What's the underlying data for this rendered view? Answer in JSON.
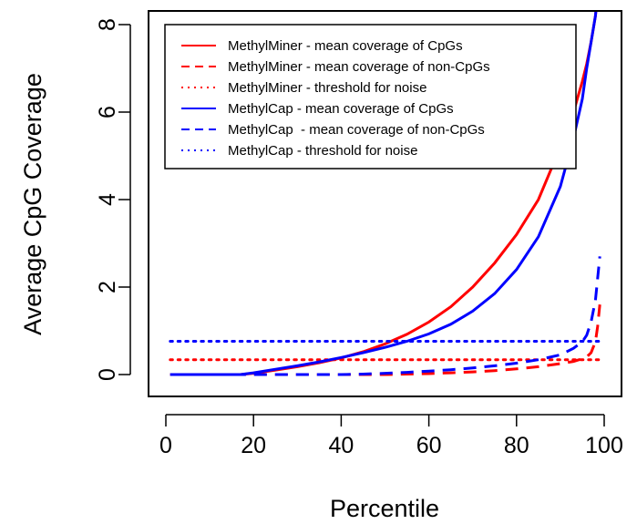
{
  "chart_data": {
    "type": "line",
    "xlabel": "Percentile",
    "ylabel": "Average CpG Coverage",
    "xlim": [
      0,
      100
    ],
    "ylim": [
      0,
      8
    ],
    "x_ticks": [
      0,
      20,
      40,
      60,
      80,
      100
    ],
    "y_ticks": [
      0,
      2,
      4,
      6,
      8
    ],
    "grid": false,
    "legend_position": "top",
    "series": [
      {
        "name": "MethylMiner - mean coverage of CpGs",
        "color": "#ff0000",
        "dash": "solid",
        "x": [
          1,
          17,
          20,
          25,
          30,
          35,
          40,
          45,
          50,
          55,
          60,
          65,
          70,
          75,
          80,
          85,
          90,
          93,
          95,
          96,
          97,
          98,
          98.5
        ],
        "y": [
          0,
          0,
          0.03,
          0.1,
          0.18,
          0.27,
          0.38,
          0.52,
          0.7,
          0.92,
          1.2,
          1.55,
          2.0,
          2.55,
          3.2,
          4.0,
          5.2,
          6.0,
          6.7,
          7.1,
          7.6,
          8.2,
          8.7
        ]
      },
      {
        "name": "MethylMiner - mean coverage of non-CpGs",
        "color": "#ff0000",
        "dash": "dashed",
        "x": [
          1,
          50,
          55,
          60,
          65,
          70,
          75,
          80,
          85,
          90,
          93,
          95,
          96,
          97,
          98,
          98.5,
          99
        ],
        "y": [
          0,
          0,
          0.01,
          0.02,
          0.04,
          0.06,
          0.09,
          0.13,
          0.18,
          0.25,
          0.3,
          0.36,
          0.4,
          0.5,
          0.75,
          1.1,
          1.6
        ]
      },
      {
        "name": "MethylMiner - threshold for noise",
        "color": "#ff0000",
        "dash": "dotted",
        "x": [
          1,
          99
        ],
        "y": [
          0.34,
          0.34
        ]
      },
      {
        "name": "MethylCap - mean coverage of CpGs",
        "color": "#0000ff",
        "dash": "solid",
        "x": [
          1,
          17,
          20,
          25,
          30,
          35,
          40,
          45,
          50,
          55,
          60,
          65,
          70,
          75,
          80,
          85,
          90,
          93,
          95,
          96,
          97,
          98,
          98.5
        ],
        "y": [
          0,
          0,
          0.04,
          0.12,
          0.2,
          0.29,
          0.39,
          0.5,
          0.62,
          0.76,
          0.93,
          1.15,
          1.45,
          1.85,
          2.4,
          3.15,
          4.3,
          5.4,
          6.3,
          7.0,
          7.6,
          8.2,
          8.7
        ]
      },
      {
        "name": "MethylCap  - mean coverage of non-CpGs",
        "color": "#0000ff",
        "dash": "dashed",
        "x": [
          1,
          40,
          45,
          50,
          55,
          60,
          65,
          70,
          75,
          80,
          85,
          90,
          93,
          95,
          96,
          97,
          98,
          98.5,
          99
        ],
        "y": [
          0,
          0,
          0.01,
          0.03,
          0.05,
          0.08,
          0.11,
          0.15,
          0.2,
          0.26,
          0.34,
          0.45,
          0.6,
          0.75,
          0.9,
          1.2,
          1.7,
          2.2,
          2.7
        ]
      },
      {
        "name": "MethylCap - threshold for noise",
        "color": "#0000ff",
        "dash": "dotted",
        "x": [
          1,
          99
        ],
        "y": [
          0.76,
          0.76
        ]
      }
    ]
  }
}
